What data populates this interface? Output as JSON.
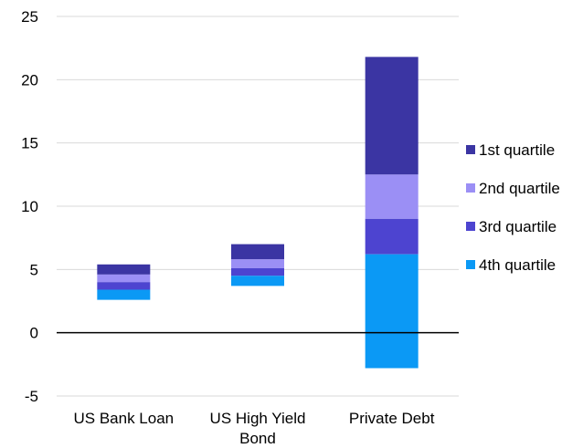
{
  "chart_data": {
    "type": "bar",
    "stacked": true,
    "title": "",
    "xlabel": "",
    "ylabel": "",
    "ylim": [
      -5,
      25
    ],
    "yticks": [
      -5,
      0,
      5,
      10,
      15,
      20,
      25
    ],
    "grid": true,
    "legend_position": "right",
    "categories": [
      [
        "US Bank Loan"
      ],
      [
        "US High Yield",
        "Bond"
      ],
      [
        "Private Debt"
      ]
    ],
    "series": [
      {
        "name": "1st quartile",
        "color": "#3b35a3",
        "ranges": [
          [
            4.6,
            5.4
          ],
          [
            5.8,
            7.0
          ],
          [
            12.5,
            21.8
          ]
        ]
      },
      {
        "name": "2nd quartile",
        "color": "#9b8ff5",
        "ranges": [
          [
            4.0,
            4.6
          ],
          [
            5.1,
            5.8
          ],
          [
            9.0,
            12.5
          ]
        ]
      },
      {
        "name": "3rd quartile",
        "color": "#4d44d0",
        "ranges": [
          [
            3.4,
            4.0
          ],
          [
            4.5,
            5.1
          ],
          [
            6.2,
            9.0
          ]
        ]
      },
      {
        "name": "4th quartile",
        "color": "#0b99f5",
        "ranges": [
          [
            2.6,
            3.4
          ],
          [
            3.7,
            4.5
          ],
          [
            -2.8,
            6.2
          ]
        ]
      }
    ]
  }
}
